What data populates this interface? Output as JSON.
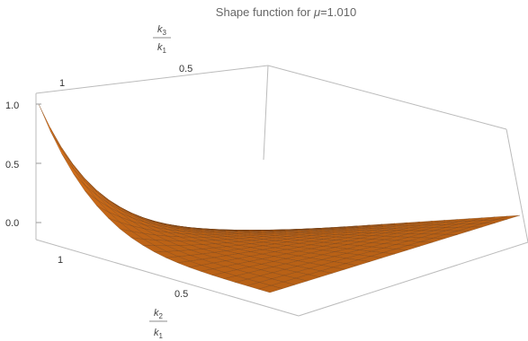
{
  "chart_data": {
    "type": "surface",
    "title_prefix": "Shape function for ",
    "title_symbol": "μ",
    "title_suffix": "=1.010",
    "x_axis": {
      "label_top": "k",
      "label_top_sub": "2",
      "label_bottom": "k",
      "label_bottom_sub": "1",
      "ticks": [
        "1",
        "0.5"
      ]
    },
    "y_axis": {
      "label_top": "k",
      "label_top_sub": "3",
      "label_bottom": "k",
      "label_bottom_sub": "1",
      "ticks": [
        "1",
        "0.5"
      ]
    },
    "z_axis": {
      "ticks": [
        "1.0",
        "0.5",
        "0.0"
      ],
      "range": [
        0,
        1
      ]
    },
    "surface_color": "#d9721a",
    "mesh_color": "#6b3a12",
    "box_color": "#bbbbbb",
    "grid_n": 20,
    "corner_values": {
      "x1_y1": 1.0,
      "x1_y0": 0.0,
      "x0_y1": 0.0,
      "x0_y0": 0.0
    },
    "ridge_value_near_origin": 0.05
  }
}
